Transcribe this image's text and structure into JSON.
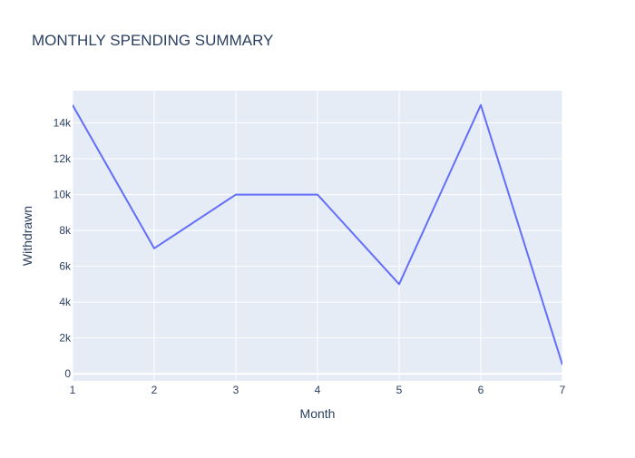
{
  "chart_data": {
    "type": "line",
    "title": "MONTHLY SPENDING SUMMARY",
    "xlabel": "Month",
    "ylabel": "Withdrawn",
    "x": [
      1,
      2,
      3,
      4,
      5,
      6,
      7
    ],
    "series": [
      {
        "values": [
          15000,
          7000,
          10000,
          10000,
          5000,
          15000,
          500
        ],
        "color": "#636efa"
      }
    ],
    "xlim": [
      1,
      7
    ],
    "ylim": [
      -400,
      15800
    ],
    "x_ticks": [
      1,
      2,
      3,
      4,
      5,
      6,
      7
    ],
    "x_tick_labels": [
      "1",
      "2",
      "3",
      "4",
      "5",
      "6",
      "7"
    ],
    "y_ticks": [
      0,
      2000,
      4000,
      6000,
      8000,
      10000,
      12000,
      14000
    ],
    "y_tick_labels": [
      "0",
      "2k",
      "4k",
      "6k",
      "8k",
      "10k",
      "12k",
      "14k"
    ],
    "grid": true,
    "legend": "none",
    "colors": {
      "plot_background": "#e5ecf6",
      "grid": "#ffffff",
      "text": "#2a3f5f",
      "line": "#636efa"
    }
  }
}
